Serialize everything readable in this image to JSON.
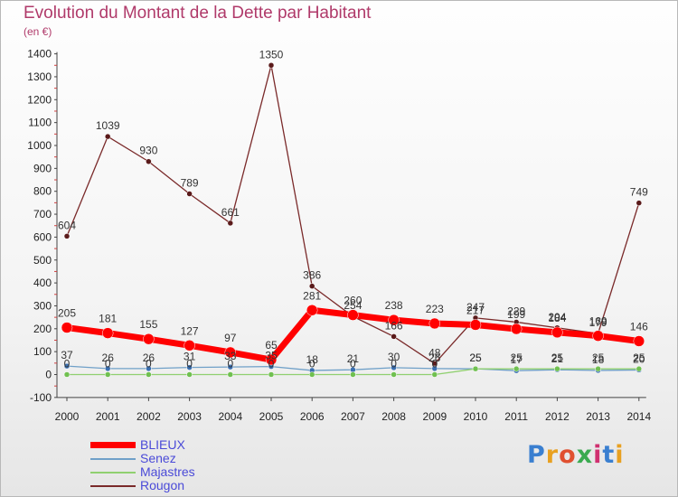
{
  "chart_data": {
    "type": "line",
    "title": "Evolution du Montant de la Dette par Habitant",
    "subtitle": "(en €)",
    "x": [
      "2000",
      "2001",
      "2002",
      "2003",
      "2004",
      "2005",
      "2006",
      "2007",
      "2008",
      "2009",
      "2010",
      "2011",
      "2012",
      "2013",
      "2014"
    ],
    "ylim": [
      -100,
      1400
    ],
    "yticks": [
      -100,
      0,
      100,
      200,
      300,
      400,
      500,
      600,
      700,
      800,
      900,
      1000,
      1100,
      1200,
      1300,
      1400
    ],
    "grid": false,
    "legend_position": "bottom-left",
    "series": [
      {
        "name": "Rougon",
        "color": "#7a2a2a",
        "values": [
          604,
          1039,
          930,
          789,
          661,
          1350,
          386,
          254,
          166,
          48,
          247,
          229,
          204,
          179,
          749
        ]
      },
      {
        "name": "Senez",
        "color": "#6fa0c8",
        "values": [
          37,
          26,
          26,
          31,
          33,
          35,
          18,
          21,
          30,
          26,
          25,
          17,
          21,
          18,
          20
        ]
      },
      {
        "name": "Majastres",
        "color": "#90d070",
        "values": [
          0,
          0,
          0,
          0,
          0,
          0,
          0,
          0,
          0,
          0,
          25,
          25,
          25,
          25,
          25
        ]
      },
      {
        "name": "BLIEUX",
        "color": "#ff0000",
        "values": [
          205,
          181,
          155,
          127,
          97,
          65,
          281,
          260,
          238,
          223,
          217,
          199,
          184,
          169,
          146
        ]
      }
    ],
    "legend_order": [
      "BLIEUX",
      "Senez",
      "Majastres",
      "Rougon"
    ]
  },
  "logo": {
    "letters": [
      "P",
      "r",
      "o",
      "x",
      "i",
      "t",
      "i"
    ],
    "colors": [
      "#3a7fd0",
      "#e8a020",
      "#e05030",
      "#3aaa50",
      "#d03070",
      "#3a7fd0",
      "#e8a020"
    ]
  }
}
